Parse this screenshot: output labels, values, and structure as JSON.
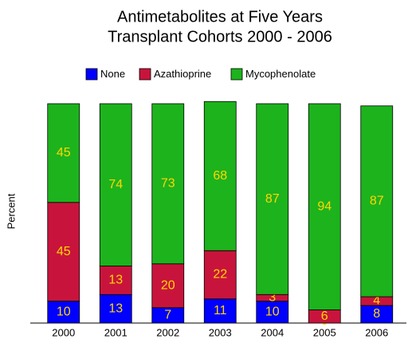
{
  "chart_data": {
    "type": "stacked-bar",
    "title": "Antimetabolites at Five Years",
    "subtitle": "Transplant Cohorts 2000 - 2006",
    "ylabel": "Percent",
    "categories": [
      "2000",
      "2001",
      "2002",
      "2003",
      "2004",
      "2005",
      "2006"
    ],
    "series": [
      {
        "name": "None",
        "color": "#0000ff",
        "values": [
          10,
          13,
          7,
          11,
          10,
          0,
          8
        ]
      },
      {
        "name": "Azathioprine",
        "color": "#c8143c",
        "values": [
          45,
          13,
          20,
          22,
          3,
          6,
          4
        ]
      },
      {
        "name": "Mycophenolate",
        "color": "#1db31d",
        "values": [
          45,
          74,
          73,
          68,
          87,
          94,
          87
        ]
      }
    ],
    "ylim": [
      0,
      100
    ],
    "legend": "top"
  }
}
